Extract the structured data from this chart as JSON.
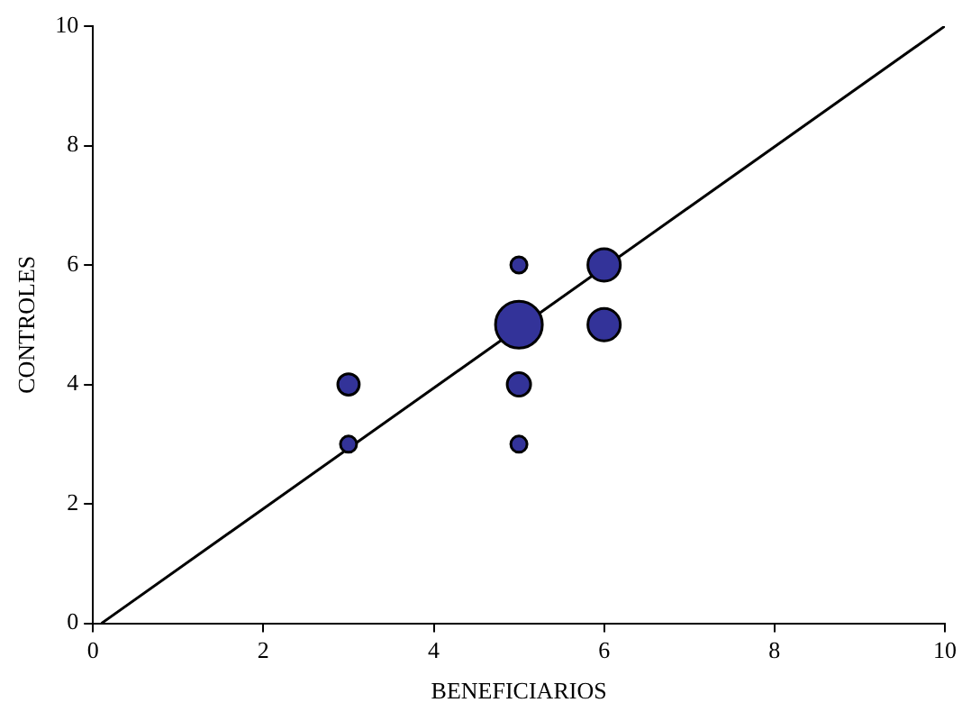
{
  "chart_data": {
    "type": "bubble",
    "xlabel": "BENEFICIARIOS",
    "ylabel": "CONTROLES",
    "xlim": [
      0,
      10
    ],
    "xticks": [
      0,
      2,
      4,
      6,
      8,
      10
    ],
    "ylim": [
      0,
      10
    ],
    "yticks": [
      0,
      2,
      4,
      6,
      8,
      10
    ],
    "grid": false,
    "legend": false,
    "series": [
      {
        "color": "#333399",
        "x": [
          3,
          3,
          5,
          5,
          5,
          5,
          6,
          6
        ],
        "values": [
          4,
          3,
          6,
          5,
          4,
          3,
          6,
          5
        ],
        "sizes": [
          0.21,
          0.12,
          0.12,
          1,
          0.25,
          0.12,
          0.48,
          0.48
        ]
      },
      {
        "type": "line",
        "color": "#000000",
        "x": [
          0.1,
          10
        ],
        "values": [
          0,
          10
        ],
        "marker": "none"
      }
    ]
  }
}
